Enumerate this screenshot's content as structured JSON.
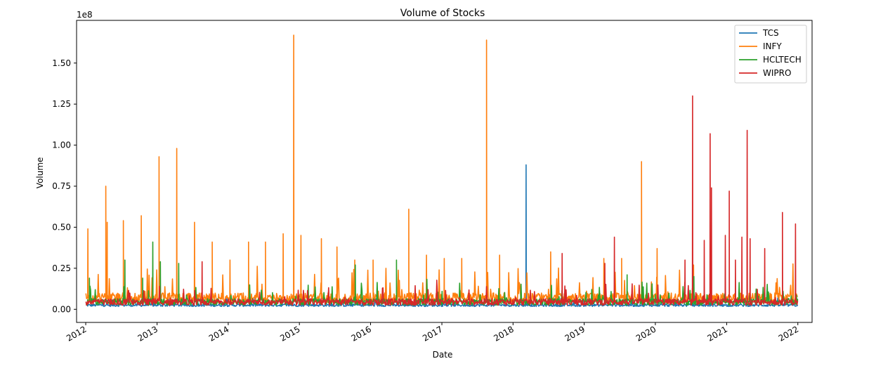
{
  "chart_data": {
    "type": "line",
    "title": "Volume of Stocks",
    "xlabel": "Date",
    "ylabel": "Volume",
    "y_multiplier_label": "1e8",
    "x_range": [
      "2011-11-15",
      "2022-03-15"
    ],
    "ylim": [
      -0.08,
      1.76
    ],
    "x_ticks": [
      {
        "date": "2012-01-01",
        "label": "2012"
      },
      {
        "date": "2013-01-01",
        "label": "2013"
      },
      {
        "date": "2014-01-01",
        "label": "2014"
      },
      {
        "date": "2015-01-01",
        "label": "2015"
      },
      {
        "date": "2016-01-01",
        "label": "2016"
      },
      {
        "date": "2017-01-01",
        "label": "2017"
      },
      {
        "date": "2018-01-01",
        "label": "2018"
      },
      {
        "date": "2019-01-01",
        "label": "2019"
      },
      {
        "date": "2020-01-01",
        "label": "2020"
      },
      {
        "date": "2021-01-01",
        "label": "2021"
      },
      {
        "date": "2022-01-01",
        "label": "2022"
      }
    ],
    "y_ticks": [
      {
        "value": 0.0,
        "label": "0.00"
      },
      {
        "value": 0.25,
        "label": "0.25"
      },
      {
        "value": 0.5,
        "label": "0.50"
      },
      {
        "value": 0.75,
        "label": "0.75"
      },
      {
        "value": 1.0,
        "label": "1.00"
      },
      {
        "value": 1.25,
        "label": "1.25"
      },
      {
        "value": 1.5,
        "label": "1.50"
      }
    ],
    "legend_position": "top-right",
    "series": [
      {
        "name": "TCS",
        "color": "#1f77b4",
        "baseline": 0.025,
        "noise": 0.008,
        "spikes": [
          {
            "date": "2018-03-09",
            "value": 0.88
          },
          {
            "date": "2020-07-10",
            "value": 0.06
          },
          {
            "date": "2020-10-10",
            "value": 0.05
          },
          {
            "date": "2021-04-12",
            "value": 0.05
          }
        ]
      },
      {
        "name": "INFY",
        "color": "#ff7f0e",
        "baseline": 0.07,
        "noise": 0.03,
        "spikes": [
          {
            "date": "2012-01-12",
            "value": 0.49
          },
          {
            "date": "2012-04-13",
            "value": 0.75
          },
          {
            "date": "2012-04-20",
            "value": 0.53
          },
          {
            "date": "2012-07-12",
            "value": 0.54
          },
          {
            "date": "2012-10-12",
            "value": 0.57
          },
          {
            "date": "2013-01-11",
            "value": 0.93
          },
          {
            "date": "2013-04-12",
            "value": 0.98
          },
          {
            "date": "2013-07-12",
            "value": 0.53
          },
          {
            "date": "2013-10-11",
            "value": 0.41
          },
          {
            "date": "2014-01-10",
            "value": 0.3
          },
          {
            "date": "2014-04-15",
            "value": 0.41
          },
          {
            "date": "2014-07-11",
            "value": 0.41
          },
          {
            "date": "2014-10-10",
            "value": 0.46
          },
          {
            "date": "2014-12-03",
            "value": 1.67
          },
          {
            "date": "2015-01-09",
            "value": 0.45
          },
          {
            "date": "2015-04-24",
            "value": 0.43
          },
          {
            "date": "2015-07-13",
            "value": 0.38
          },
          {
            "date": "2015-10-12",
            "value": 0.3
          },
          {
            "date": "2016-01-14",
            "value": 0.3
          },
          {
            "date": "2016-07-15",
            "value": 0.61
          },
          {
            "date": "2016-10-14",
            "value": 0.33
          },
          {
            "date": "2017-01-13",
            "value": 0.31
          },
          {
            "date": "2017-04-13",
            "value": 0.31
          },
          {
            "date": "2017-08-18",
            "value": 1.64
          },
          {
            "date": "2017-10-24",
            "value": 0.33
          },
          {
            "date": "2018-07-13",
            "value": 0.35
          },
          {
            "date": "2019-04-12",
            "value": 0.31
          },
          {
            "date": "2019-07-12",
            "value": 0.31
          },
          {
            "date": "2019-10-22",
            "value": 0.9
          },
          {
            "date": "2020-01-10",
            "value": 0.37
          },
          {
            "date": "2020-07-15",
            "value": 0.27
          }
        ]
      },
      {
        "name": "HCLTECH",
        "color": "#2ca02c",
        "baseline": 0.045,
        "noise": 0.02,
        "spikes": [
          {
            "date": "2012-01-20",
            "value": 0.19
          },
          {
            "date": "2012-07-20",
            "value": 0.3
          },
          {
            "date": "2012-10-19",
            "value": 0.19
          },
          {
            "date": "2012-12-10",
            "value": 0.41
          },
          {
            "date": "2013-01-18",
            "value": 0.29
          },
          {
            "date": "2013-04-22",
            "value": 0.28
          },
          {
            "date": "2015-10-15",
            "value": 0.27
          },
          {
            "date": "2016-05-13",
            "value": 0.3
          },
          {
            "date": "2019-08-09",
            "value": 0.21
          },
          {
            "date": "2020-07-17",
            "value": 0.2
          }
        ]
      },
      {
        "name": "WIPRO",
        "color": "#d62728",
        "baseline": 0.045,
        "noise": 0.02,
        "spikes": [
          {
            "date": "2013-08-20",
            "value": 0.29
          },
          {
            "date": "2018-09-10",
            "value": 0.34
          },
          {
            "date": "2019-04-17",
            "value": 0.28
          },
          {
            "date": "2019-06-05",
            "value": 0.44
          },
          {
            "date": "2020-06-01",
            "value": 0.3
          },
          {
            "date": "2020-07-10",
            "value": 1.3
          },
          {
            "date": "2020-09-08",
            "value": 0.42
          },
          {
            "date": "2020-10-08",
            "value": 1.07
          },
          {
            "date": "2020-10-15",
            "value": 0.74
          },
          {
            "date": "2020-12-25",
            "value": 0.45
          },
          {
            "date": "2021-01-14",
            "value": 0.72
          },
          {
            "date": "2021-02-15",
            "value": 0.3
          },
          {
            "date": "2021-03-20",
            "value": 0.44
          },
          {
            "date": "2021-04-16",
            "value": 1.09
          },
          {
            "date": "2021-05-01",
            "value": 0.43
          },
          {
            "date": "2021-07-15",
            "value": 0.37
          },
          {
            "date": "2021-10-14",
            "value": 0.59
          },
          {
            "date": "2021-12-20",
            "value": 0.52
          }
        ]
      }
    ]
  }
}
